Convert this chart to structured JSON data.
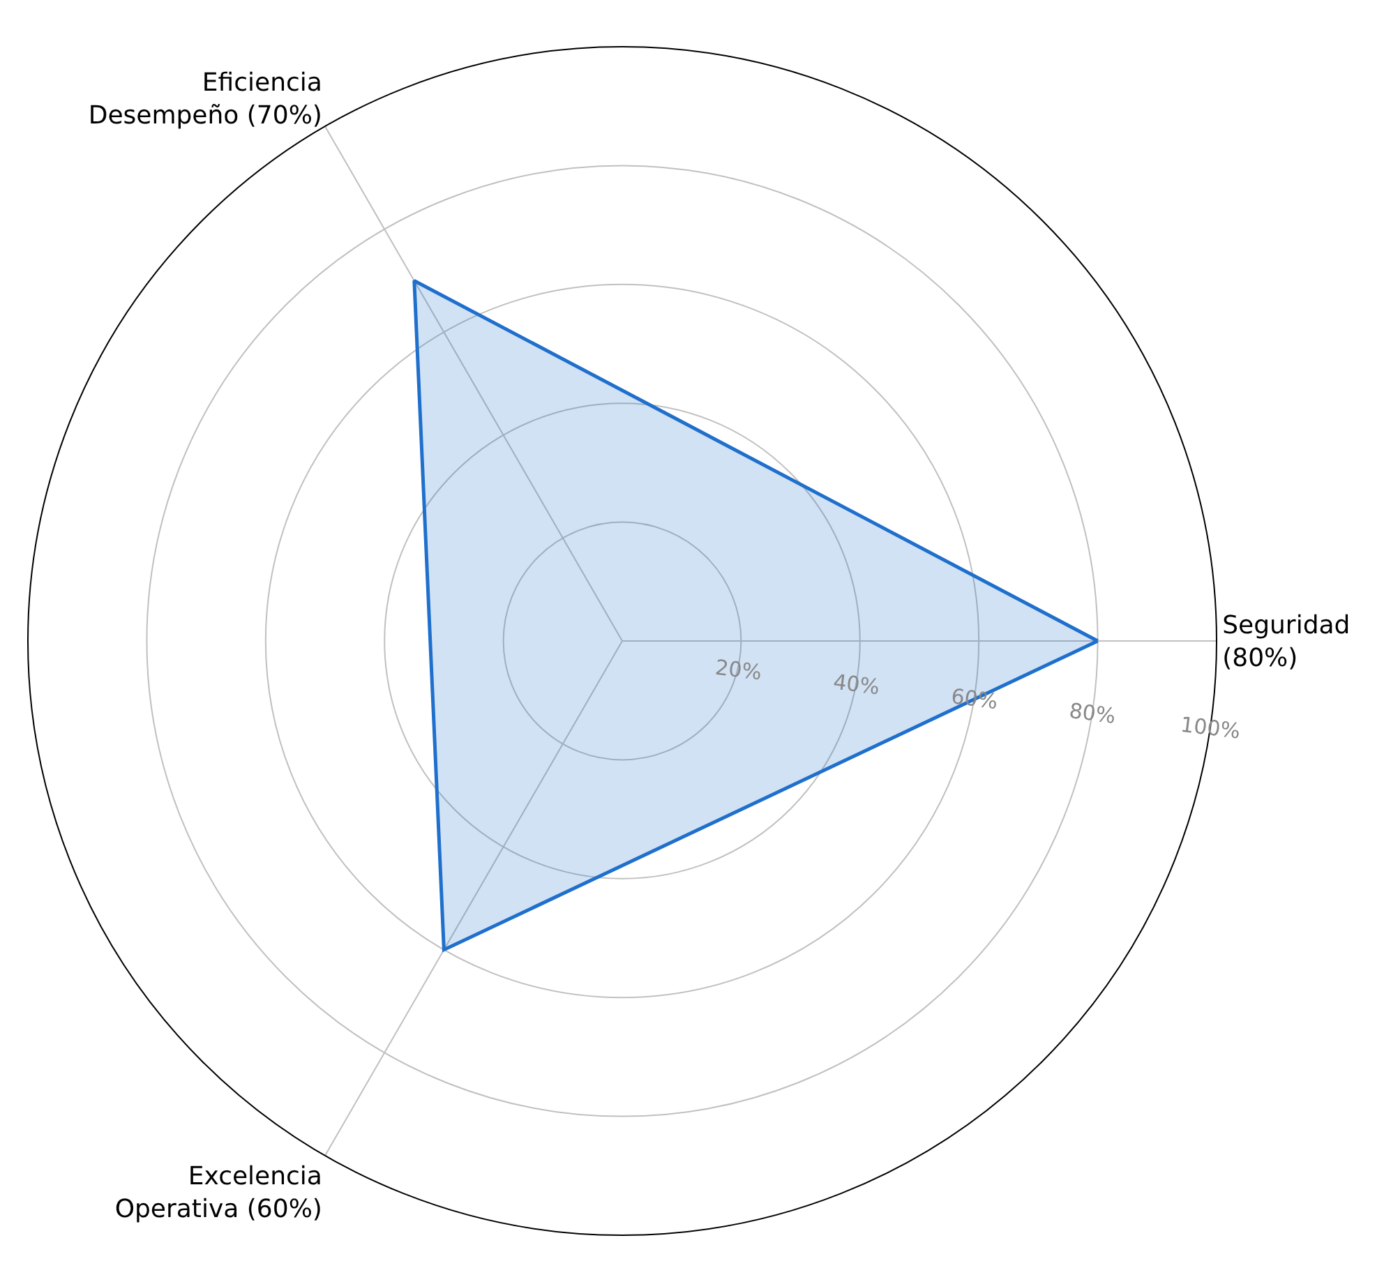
{
  "chart_data": {
    "type": "radar",
    "categories": [
      "Seguridad\n(80%)",
      "Excelencia\nOperativa (60%)",
      "Eficiencia\nDesempeño (70%)"
    ],
    "series": [
      {
        "color": "#1f6fcc",
        "values": [
          80,
          60,
          70
        ]
      }
    ],
    "ylim": [
      0,
      100
    ],
    "yticks": [
      {
        "value": 20,
        "label": "20%"
      },
      {
        "value": 40,
        "label": "40%"
      },
      {
        "value": 60,
        "label": "60%"
      },
      {
        "value": 80,
        "label": "80%"
      },
      {
        "value": 100,
        "label": "100%"
      }
    ],
    "grid": true,
    "marker": "none",
    "line_style": "solid"
  }
}
